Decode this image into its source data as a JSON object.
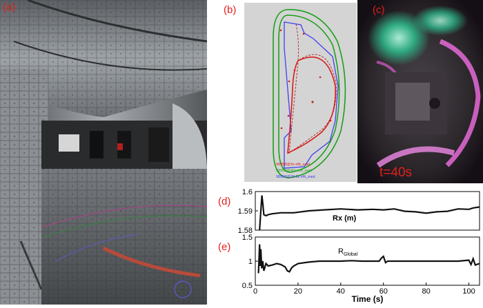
{
  "panels": {
    "a": {
      "label": "(a)"
    },
    "b": {
      "label": "(b)",
      "legend": [
        "98958@3s efit_east",
        "98958@40s efit_east",
        "98958@20.6s efit_east"
      ],
      "legend_colors": [
        "#e0201c",
        "#2ca02c",
        "#3a3af0"
      ]
    },
    "c": {
      "label": "(c)",
      "time_label": "t=40s"
    },
    "d": {
      "label": "(d)"
    },
    "e": {
      "label": "(e)"
    }
  },
  "colors": {
    "label_red": "#e0201c",
    "trace": "#111111"
  },
  "chart_data": [
    {
      "type": "line",
      "panel": "(d)",
      "annotation": "Rx (m)",
      "xlabel": "",
      "ylabel": "",
      "xlim": [
        0,
        105
      ],
      "ylim": [
        1.58,
        1.6
      ],
      "yticks": [
        "1.6",
        "1.59",
        "1.58"
      ],
      "ytick_values": [
        1.6,
        1.59,
        1.58
      ],
      "xticks": [],
      "series": [
        {
          "x": [
            2,
            2.3,
            2.7,
            3.1,
            3.5,
            4,
            5,
            6,
            8,
            12,
            18,
            25,
            32,
            40,
            48,
            55,
            60,
            65,
            70,
            75,
            80,
            85,
            90,
            95,
            100,
            102,
            105
          ],
          "y": [
            1.58,
            1.585,
            1.592,
            1.598,
            1.594,
            1.588,
            1.5875,
            1.588,
            1.5885,
            1.589,
            1.589,
            1.59,
            1.5905,
            1.591,
            1.5905,
            1.5908,
            1.5905,
            1.591,
            1.5898,
            1.5895,
            1.5888,
            1.5895,
            1.5898,
            1.591,
            1.5908,
            1.5915,
            1.592
          ]
        }
      ]
    },
    {
      "type": "line",
      "panel": "(e)",
      "annotation": "R",
      "annotation_sub": "Global",
      "xlabel": "Time (s)",
      "ylabel": "",
      "xlim": [
        0,
        105
      ],
      "ylim": [
        0.5,
        1.5
      ],
      "yticks": [
        "1.5",
        "1",
        "0.5"
      ],
      "ytick_values": [
        1.5,
        1,
        0.5
      ],
      "xticks": [
        "0",
        "20",
        "40",
        "60",
        "80",
        "100"
      ],
      "xtick_values": [
        0,
        20,
        40,
        60,
        80,
        100
      ],
      "series": [
        {
          "x": [
            1.5,
            2,
            2.3,
            2.6,
            3,
            3.5,
            4,
            5,
            6,
            8,
            10,
            12,
            14,
            15,
            16,
            17,
            18,
            20,
            25,
            30,
            35,
            40,
            45,
            50,
            55,
            58,
            59,
            60,
            61,
            62,
            65,
            70,
            75,
            80,
            85,
            90,
            95,
            100,
            101,
            102,
            103,
            105
          ],
          "y": [
            0.75,
            1.35,
            0.9,
            1.25,
            0.85,
            1.0,
            0.8,
            0.95,
            0.9,
            0.92,
            0.95,
            0.93,
            0.88,
            0.8,
            0.78,
            0.86,
            0.9,
            0.95,
            0.98,
            1.0,
            1.0,
            1.0,
            1.01,
            1.0,
            1.0,
            1.0,
            1.06,
            1.1,
            0.97,
            1.0,
            1.0,
            1.0,
            1.0,
            1.0,
            1.0,
            1.0,
            1.0,
            1.02,
            0.93,
            1.05,
            0.92,
            0.95
          ]
        }
      ]
    }
  ]
}
